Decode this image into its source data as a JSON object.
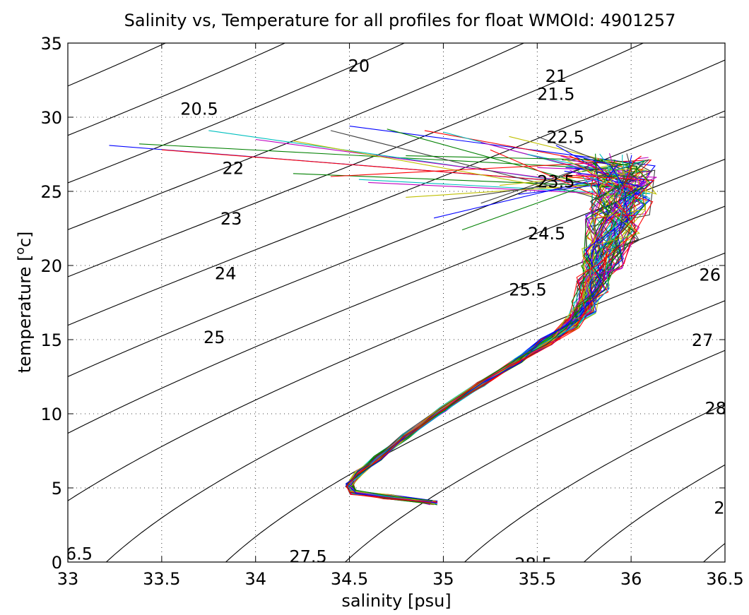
{
  "chart_data": {
    "type": "scatter",
    "title": "Salinity vs, Temperature for all profiles for float WMOId: 4901257",
    "xlabel": "salinity [psu]",
    "ylabel_main": "temperature [",
    "ylabel_sup": "o",
    "ylabel_end": "c]",
    "xlim": [
      33,
      36.5
    ],
    "ylim": [
      0,
      35
    ],
    "xticks": [
      33,
      33.5,
      34,
      34.5,
      35,
      35.5,
      36,
      36.5
    ],
    "xtick_labels": [
      "33",
      "33.5",
      "34",
      "34.5",
      "35",
      "35.5",
      "36",
      "36.5"
    ],
    "yticks": [
      0,
      5,
      10,
      15,
      20,
      25,
      30,
      35
    ],
    "ytick_labels": [
      "0",
      "5",
      "10",
      "15",
      "20",
      "25",
      "30",
      "35"
    ],
    "grid": true,
    "isopycnal_labels": [
      {
        "text": "20",
        "s": 34.55,
        "t": 33.5
      },
      {
        "text": "20.5",
        "s": 33.7,
        "t": 30.6
      },
      {
        "text": "21",
        "s": 35.6,
        "t": 32.8
      },
      {
        "text": "21.5",
        "s": 35.6,
        "t": 31.6
      },
      {
        "text": "22",
        "s": 33.88,
        "t": 26.6
      },
      {
        "text": "22.5",
        "s": 35.65,
        "t": 28.7
      },
      {
        "text": "23",
        "s": 33.87,
        "t": 23.2
      },
      {
        "text": "23.5",
        "s": 35.6,
        "t": 25.7
      },
      {
        "text": "24",
        "s": 33.84,
        "t": 19.5
      },
      {
        "text": "24.5",
        "s": 35.55,
        "t": 22.2
      },
      {
        "text": "25",
        "s": 33.78,
        "t": 15.2
      },
      {
        "text": "25.5",
        "s": 35.45,
        "t": 18.4
      },
      {
        "text": "26",
        "s": 36.42,
        "t": 19.4
      },
      {
        "text": "27",
        "s": 36.38,
        "t": 15.0
      },
      {
        "text": "28",
        "s": 36.45,
        "t": 10.4
      },
      {
        "text": "2",
        "s": 36.47,
        "t": 3.7
      },
      {
        "text": "6.5",
        "s": 33.06,
        "t": 0.6
      },
      {
        "text": "27.5",
        "s": 34.28,
        "t": 0.4
      },
      {
        "text": "28.5",
        "s": 35.48,
        "t": -0.1
      }
    ],
    "profile_colors": [
      "#0000ff",
      "#008000",
      "#ff0000",
      "#00bfbf",
      "#bf00bf",
      "#bfbf00",
      "#404040"
    ],
    "mean_profile": [
      {
        "s": 34.95,
        "t": 4.0
      },
      {
        "s": 34.7,
        "t": 4.4
      },
      {
        "s": 34.52,
        "t": 4.7
      },
      {
        "s": 34.5,
        "t": 5.2
      },
      {
        "s": 34.55,
        "t": 6.0
      },
      {
        "s": 34.65,
        "t": 7.0
      },
      {
        "s": 34.8,
        "t": 8.5
      },
      {
        "s": 35.0,
        "t": 10.3
      },
      {
        "s": 35.2,
        "t": 12.0
      },
      {
        "s": 35.4,
        "t": 13.6
      },
      {
        "s": 35.55,
        "t": 14.9
      },
      {
        "s": 35.68,
        "t": 16.0
      },
      {
        "s": 35.75,
        "t": 17.2
      },
      {
        "s": 35.8,
        "t": 18.8
      },
      {
        "s": 35.85,
        "t": 20.5
      },
      {
        "s": 35.9,
        "t": 22.5
      },
      {
        "s": 35.95,
        "t": 24.5
      },
      {
        "s": 35.95,
        "t": 26.0
      }
    ],
    "surface_endpoints": [
      {
        "s": 33.22,
        "t": 28.1
      },
      {
        "s": 33.38,
        "t": 28.2
      },
      {
        "s": 33.5,
        "t": 27.8
      },
      {
        "s": 33.75,
        "t": 29.1
      },
      {
        "s": 34.0,
        "t": 28.5
      },
      {
        "s": 34.2,
        "t": 28.4
      },
      {
        "s": 34.4,
        "t": 29.1
      },
      {
        "s": 34.5,
        "t": 29.4
      },
      {
        "s": 34.7,
        "t": 29.2
      },
      {
        "s": 34.9,
        "t": 29.1
      },
      {
        "s": 35.0,
        "t": 29.0
      },
      {
        "s": 35.2,
        "t": 28.3
      },
      {
        "s": 35.35,
        "t": 28.7
      },
      {
        "s": 35.5,
        "t": 28.7
      },
      {
        "s": 35.6,
        "t": 28.1
      },
      {
        "s": 34.2,
        "t": 26.2
      },
      {
        "s": 34.4,
        "t": 26.0
      },
      {
        "s": 34.55,
        "t": 25.8
      },
      {
        "s": 34.6,
        "t": 25.6
      },
      {
        "s": 34.8,
        "t": 24.6
      },
      {
        "s": 35.0,
        "t": 24.4
      },
      {
        "s": 34.95,
        "t": 23.2
      },
      {
        "s": 35.1,
        "t": 22.4
      },
      {
        "s": 35.25,
        "t": 27.8
      },
      {
        "s": 35.45,
        "t": 27.5
      },
      {
        "s": 35.5,
        "t": 26.6
      },
      {
        "s": 35.3,
        "t": 25.4
      },
      {
        "s": 35.2,
        "t": 24.2
      },
      {
        "s": 35.4,
        "t": 24.8
      },
      {
        "s": 34.8,
        "t": 27.4
      }
    ]
  }
}
